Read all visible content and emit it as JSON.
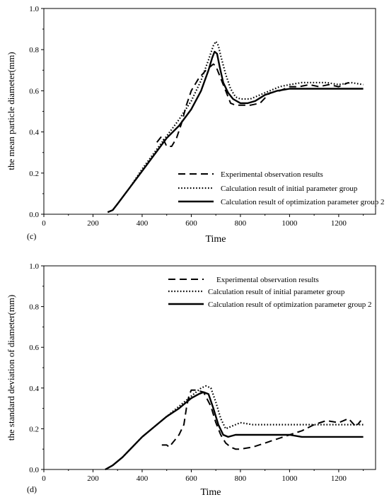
{
  "chart_data": [
    {
      "type": "line",
      "panel_label": "(c)",
      "xlabel": "Time",
      "ylabel": "the mean particle diameter(mm)",
      "xlim": [
        0,
        1350
      ],
      "ylim": [
        0,
        1.0
      ],
      "xticks": [
        "0",
        "200",
        "400",
        "600",
        "800",
        "1000",
        "1200"
      ],
      "yticks": [
        "0.0",
        "0.2",
        "0.4",
        "0.6",
        "0.8",
        "1.0"
      ],
      "legend_position": "bottom-right",
      "series": [
        {
          "name": "Experimental observation results",
          "style": "dashed",
          "x": [
            460,
            480,
            500,
            520,
            540,
            560,
            580,
            600,
            630,
            660,
            690,
            700,
            720,
            740,
            760,
            780,
            800,
            840,
            880,
            920,
            960,
            1000,
            1040,
            1080,
            1120,
            1160,
            1200,
            1240
          ],
          "y": [
            0.35,
            0.38,
            0.33,
            0.33,
            0.37,
            0.44,
            0.53,
            0.6,
            0.66,
            0.7,
            0.73,
            0.72,
            0.66,
            0.6,
            0.54,
            0.53,
            0.53,
            0.53,
            0.54,
            0.59,
            0.6,
            0.62,
            0.62,
            0.63,
            0.62,
            0.63,
            0.62,
            0.64
          ]
        },
        {
          "name": "Calculation result of initial parameter group",
          "style": "dotted",
          "x": [
            260,
            280,
            300,
            350,
            400,
            450,
            500,
            550,
            600,
            640,
            670,
            690,
            700,
            710,
            720,
            740,
            760,
            780,
            800,
            840,
            880,
            920,
            960,
            1000,
            1050,
            1100,
            1150,
            1200,
            1250,
            1300
          ],
          "y": [
            0.01,
            0.02,
            0.05,
            0.13,
            0.22,
            0.3,
            0.38,
            0.46,
            0.55,
            0.65,
            0.75,
            0.82,
            0.84,
            0.82,
            0.77,
            0.68,
            0.61,
            0.57,
            0.56,
            0.56,
            0.58,
            0.6,
            0.62,
            0.63,
            0.64,
            0.64,
            0.64,
            0.63,
            0.64,
            0.63
          ]
        },
        {
          "name": "Calculation result of optimization parameter group 2",
          "style": "solid",
          "x": [
            260,
            280,
            300,
            350,
            400,
            450,
            500,
            550,
            600,
            640,
            670,
            685,
            695,
            705,
            715,
            730,
            750,
            770,
            800,
            830,
            860,
            900,
            950,
            1000,
            1050,
            1100,
            1150,
            1200,
            1250,
            1300
          ],
          "y": [
            0.01,
            0.02,
            0.05,
            0.13,
            0.21,
            0.29,
            0.37,
            0.43,
            0.51,
            0.6,
            0.7,
            0.76,
            0.79,
            0.78,
            0.72,
            0.64,
            0.59,
            0.56,
            0.54,
            0.54,
            0.55,
            0.58,
            0.6,
            0.61,
            0.61,
            0.61,
            0.61,
            0.61,
            0.61,
            0.61
          ]
        }
      ]
    },
    {
      "type": "line",
      "panel_label": "(d)",
      "xlabel": "Time",
      "ylabel": "the standard deviation of diameter(mm)",
      "xlim": [
        0,
        1350
      ],
      "ylim": [
        0,
        1.0
      ],
      "xticks": [
        "0",
        "200",
        "400",
        "600",
        "800",
        "1000",
        "1200"
      ],
      "yticks": [
        "0.0",
        "0.2",
        "0.4",
        "0.6",
        "0.8",
        "1.0"
      ],
      "legend_position": "top-right",
      "series": [
        {
          "name": "Experimental observation results",
          "style": "dashed",
          "x": [
            480,
            500,
            510,
            530,
            550,
            570,
            580,
            590,
            600,
            620,
            650,
            680,
            700,
            720,
            740,
            760,
            780,
            800,
            850,
            900,
            950,
            1000,
            1050,
            1100,
            1150,
            1200,
            1240,
            1270,
            1290
          ],
          "y": [
            0.12,
            0.12,
            0.11,
            0.14,
            0.17,
            0.22,
            0.3,
            0.36,
            0.39,
            0.39,
            0.38,
            0.31,
            0.23,
            0.17,
            0.13,
            0.11,
            0.1,
            0.1,
            0.11,
            0.13,
            0.15,
            0.17,
            0.19,
            0.22,
            0.24,
            0.23,
            0.25,
            0.21,
            0.24
          ]
        },
        {
          "name": "Calculation result of initial parameter group",
          "style": "dotted",
          "x": [
            250,
            280,
            320,
            360,
            400,
            450,
            500,
            550,
            600,
            640,
            660,
            680,
            700,
            720,
            740,
            760,
            780,
            800,
            850,
            900,
            950,
            1000,
            1050,
            1100,
            1150,
            1200,
            1250,
            1300
          ],
          "y": [
            0.0,
            0.02,
            0.06,
            0.11,
            0.16,
            0.21,
            0.26,
            0.31,
            0.36,
            0.4,
            0.41,
            0.4,
            0.33,
            0.25,
            0.2,
            0.21,
            0.22,
            0.23,
            0.22,
            0.22,
            0.22,
            0.22,
            0.22,
            0.22,
            0.22,
            0.22,
            0.22,
            0.22
          ]
        },
        {
          "name": "Calculation result of optimization parameter group 2",
          "style": "solid",
          "x": [
            250,
            280,
            320,
            360,
            400,
            450,
            500,
            550,
            600,
            630,
            650,
            670,
            690,
            710,
            730,
            750,
            780,
            800,
            850,
            900,
            950,
            1000,
            1050,
            1100,
            1150,
            1200,
            1250,
            1300
          ],
          "y": [
            0.0,
            0.02,
            0.06,
            0.11,
            0.16,
            0.21,
            0.26,
            0.3,
            0.35,
            0.37,
            0.38,
            0.37,
            0.3,
            0.22,
            0.17,
            0.16,
            0.17,
            0.17,
            0.17,
            0.17,
            0.17,
            0.17,
            0.16,
            0.16,
            0.16,
            0.16,
            0.16,
            0.16
          ]
        }
      ]
    }
  ]
}
